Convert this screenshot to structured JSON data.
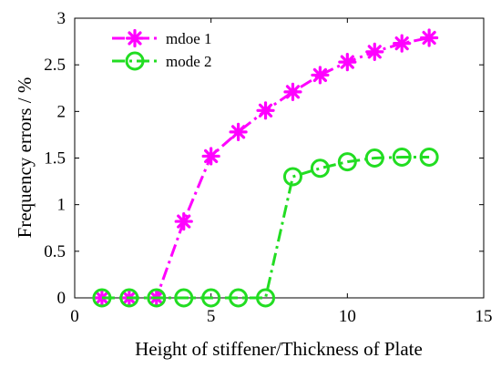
{
  "chart_data": {
    "type": "line",
    "title": "",
    "xlabel": "Height of stiffener/Thickness of Plate",
    "ylabel": "Frequency errors / %",
    "xlim": [
      0,
      15
    ],
    "ylim": [
      0,
      3
    ],
    "xticks": [
      0,
      5,
      10,
      15
    ],
    "yticks": [
      0,
      0.5,
      1,
      1.5,
      2,
      2.5,
      3
    ],
    "grid": false,
    "legend_position": "top-left",
    "series": [
      {
        "name": "mdoe 1",
        "color": "#ff00ff",
        "marker": "asterisk",
        "line_style": "dash-dot",
        "x": [
          1,
          2,
          3,
          4,
          5,
          6,
          7,
          8,
          9,
          10,
          11,
          12,
          13
        ],
        "y": [
          0,
          0,
          0,
          0.82,
          1.52,
          1.78,
          2.01,
          2.21,
          2.39,
          2.53,
          2.64,
          2.73,
          2.79
        ]
      },
      {
        "name": "mode 2",
        "color": "#22dd22",
        "marker": "circle",
        "line_style": "dash-dot",
        "x": [
          1,
          2,
          3,
          4,
          5,
          6,
          7,
          8,
          9,
          10,
          11,
          12,
          13
        ],
        "y": [
          0,
          0,
          0,
          0,
          0,
          0,
          0,
          1.3,
          1.39,
          1.46,
          1.5,
          1.51,
          1.51
        ]
      }
    ]
  }
}
